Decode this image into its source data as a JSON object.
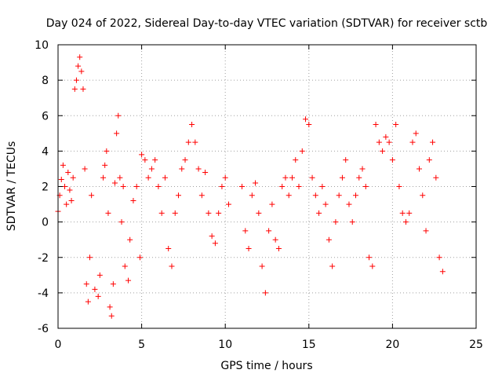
{
  "chart_data": {
    "type": "scatter",
    "title": "Day 024 of 2022, Sidereal Day-to-day VTEC variation (SDTVAR) for receiver sctb",
    "xlabel": "GPS time / hours",
    "ylabel": "SDTVAR / TECUs",
    "xlim": [
      0,
      25
    ],
    "ylim": [
      -6,
      10
    ],
    "xticks": [
      0,
      5,
      10,
      15,
      20,
      25
    ],
    "yticks": [
      -6,
      -4,
      -2,
      0,
      2,
      4,
      6,
      8,
      10
    ],
    "grid": true,
    "marker": "+",
    "color": "#ff0000",
    "series": [
      {
        "name": "SDTVAR",
        "points": [
          [
            0.0,
            0.6
          ],
          [
            0.1,
            1.5
          ],
          [
            0.2,
            2.4
          ],
          [
            0.3,
            3.2
          ],
          [
            0.4,
            2.0
          ],
          [
            0.5,
            1.0
          ],
          [
            0.6,
            2.8
          ],
          [
            0.7,
            1.8
          ],
          [
            0.8,
            1.2
          ],
          [
            0.9,
            2.5
          ],
          [
            1.0,
            7.5
          ],
          [
            1.1,
            8.0
          ],
          [
            1.2,
            8.8
          ],
          [
            1.3,
            9.3
          ],
          [
            1.4,
            8.5
          ],
          [
            1.5,
            7.5
          ],
          [
            1.6,
            3.0
          ],
          [
            1.7,
            -3.5
          ],
          [
            1.8,
            -4.5
          ],
          [
            1.9,
            -2.0
          ],
          [
            2.0,
            1.5
          ],
          [
            2.2,
            -3.8
          ],
          [
            2.4,
            -4.2
          ],
          [
            2.5,
            -3.0
          ],
          [
            2.7,
            2.5
          ],
          [
            2.8,
            3.2
          ],
          [
            2.9,
            4.0
          ],
          [
            3.0,
            0.5
          ],
          [
            3.1,
            -4.8
          ],
          [
            3.2,
            -5.3
          ],
          [
            3.3,
            -3.5
          ],
          [
            3.4,
            2.2
          ],
          [
            3.5,
            5.0
          ],
          [
            3.6,
            6.0
          ],
          [
            3.7,
            2.5
          ],
          [
            3.8,
            0.0
          ],
          [
            3.9,
            2.0
          ],
          [
            4.0,
            -2.5
          ],
          [
            4.2,
            -3.3
          ],
          [
            4.3,
            -1.0
          ],
          [
            4.5,
            1.2
          ],
          [
            4.7,
            2.0
          ],
          [
            4.9,
            -2.0
          ],
          [
            5.0,
            3.8
          ],
          [
            5.2,
            3.5
          ],
          [
            5.4,
            2.5
          ],
          [
            5.6,
            3.0
          ],
          [
            5.8,
            3.5
          ],
          [
            6.0,
            2.0
          ],
          [
            6.2,
            0.5
          ],
          [
            6.4,
            2.5
          ],
          [
            6.6,
            -1.5
          ],
          [
            6.8,
            -2.5
          ],
          [
            7.0,
            0.5
          ],
          [
            7.2,
            1.5
          ],
          [
            7.4,
            3.0
          ],
          [
            7.6,
            3.5
          ],
          [
            7.8,
            4.5
          ],
          [
            8.0,
            5.5
          ],
          [
            8.2,
            4.5
          ],
          [
            8.4,
            3.0
          ],
          [
            8.6,
            1.5
          ],
          [
            8.8,
            2.8
          ],
          [
            9.0,
            0.5
          ],
          [
            9.2,
            -0.8
          ],
          [
            9.4,
            -1.2
          ],
          [
            9.6,
            0.5
          ],
          [
            9.8,
            2.0
          ],
          [
            10.0,
            2.5
          ],
          [
            10.2,
            1.0
          ],
          [
            11.0,
            2.0
          ],
          [
            11.2,
            -0.5
          ],
          [
            11.4,
            -1.5
          ],
          [
            11.6,
            1.5
          ],
          [
            11.8,
            2.2
          ],
          [
            12.0,
            0.5
          ],
          [
            12.2,
            -2.5
          ],
          [
            12.4,
            -4.0
          ],
          [
            12.6,
            -0.5
          ],
          [
            12.8,
            1.0
          ],
          [
            13.0,
            -1.0
          ],
          [
            13.2,
            -1.5
          ],
          [
            13.4,
            2.0
          ],
          [
            13.6,
            2.5
          ],
          [
            13.8,
            1.5
          ],
          [
            14.0,
            2.5
          ],
          [
            14.2,
            3.5
          ],
          [
            14.4,
            2.0
          ],
          [
            14.6,
            4.0
          ],
          [
            14.8,
            5.8
          ],
          [
            15.0,
            5.5
          ],
          [
            15.2,
            2.5
          ],
          [
            15.4,
            1.5
          ],
          [
            15.6,
            0.5
          ],
          [
            15.8,
            2.0
          ],
          [
            16.0,
            1.0
          ],
          [
            16.2,
            -1.0
          ],
          [
            16.4,
            -2.5
          ],
          [
            16.6,
            0.0
          ],
          [
            16.8,
            1.5
          ],
          [
            17.0,
            2.5
          ],
          [
            17.2,
            3.5
          ],
          [
            17.4,
            1.0
          ],
          [
            17.6,
            0.0
          ],
          [
            17.8,
            1.5
          ],
          [
            18.0,
            2.5
          ],
          [
            18.2,
            3.0
          ],
          [
            18.4,
            2.0
          ],
          [
            18.6,
            -2.0
          ],
          [
            18.8,
            -2.5
          ],
          [
            19.0,
            5.5
          ],
          [
            19.2,
            4.5
          ],
          [
            19.4,
            4.0
          ],
          [
            19.6,
            4.8
          ],
          [
            19.8,
            4.5
          ],
          [
            20.0,
            3.5
          ],
          [
            20.2,
            5.5
          ],
          [
            20.4,
            2.0
          ],
          [
            20.6,
            0.5
          ],
          [
            20.8,
            0.0
          ],
          [
            21.0,
            0.5
          ],
          [
            21.2,
            4.5
          ],
          [
            21.4,
            5.0
          ],
          [
            21.6,
            3.0
          ],
          [
            21.8,
            1.5
          ],
          [
            22.0,
            -0.5
          ],
          [
            22.2,
            3.5
          ],
          [
            22.4,
            4.5
          ],
          [
            22.6,
            2.5
          ],
          [
            22.8,
            -2.0
          ],
          [
            23.0,
            -2.8
          ]
        ]
      }
    ]
  }
}
